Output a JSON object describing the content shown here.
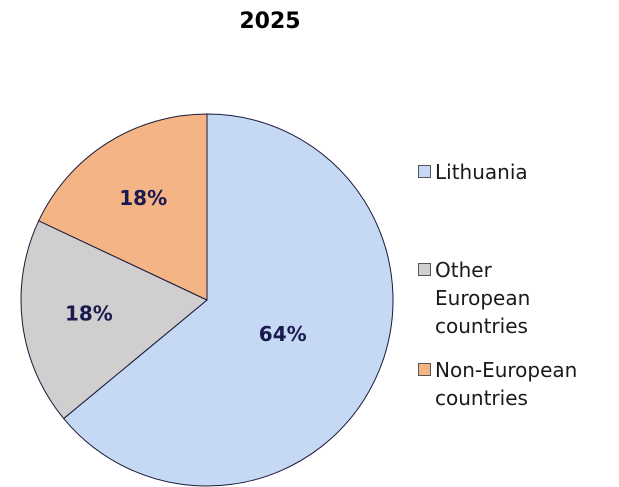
{
  "chart_data": {
    "type": "pie",
    "title": "2025",
    "categories": [
      "Lithuania",
      "Other European countries",
      "Non-European countries"
    ],
    "values": [
      64,
      18,
      18
    ],
    "value_labels": [
      "64%",
      "18%",
      "18%"
    ],
    "colors": [
      "#c5d9f5",
      "#d0cece",
      "#f5b486"
    ],
    "legend": "right"
  }
}
